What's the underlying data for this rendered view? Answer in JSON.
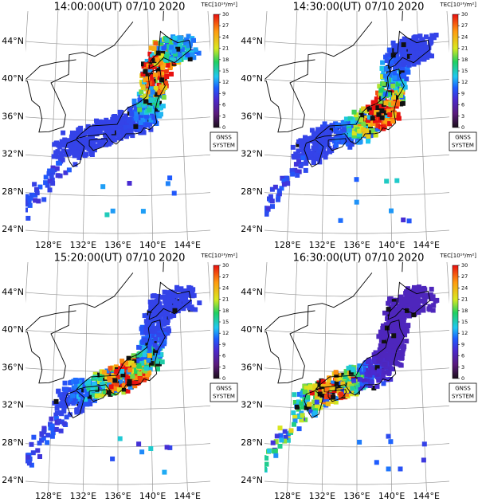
{
  "panels": [
    {
      "title": "14:00:00(UT) 07/10 2020"
    },
    {
      "title": "14:30:00(UT) 07/10 2020"
    },
    {
      "title": "15:20:00(UT) 07/10 2020"
    },
    {
      "title": "16:30:00(UT) 07/10 2020"
    }
  ],
  "latitude_labels": [
    "44°N",
    "40°N",
    "36°N",
    "32°N",
    "28°N",
    "24°N"
  ],
  "longitude_labels": [
    "128°E",
    "132°E",
    "136°E",
    "140°E",
    "144°E"
  ],
  "colorbar": {
    "label": "TEC[10¹⁶/m²]",
    "ticks": [
      0,
      3,
      6,
      9,
      12,
      15,
      18,
      21,
      24,
      27,
      30
    ]
  },
  "badge": {
    "line1": "GNSS",
    "line2": "SYSTEM"
  }
}
